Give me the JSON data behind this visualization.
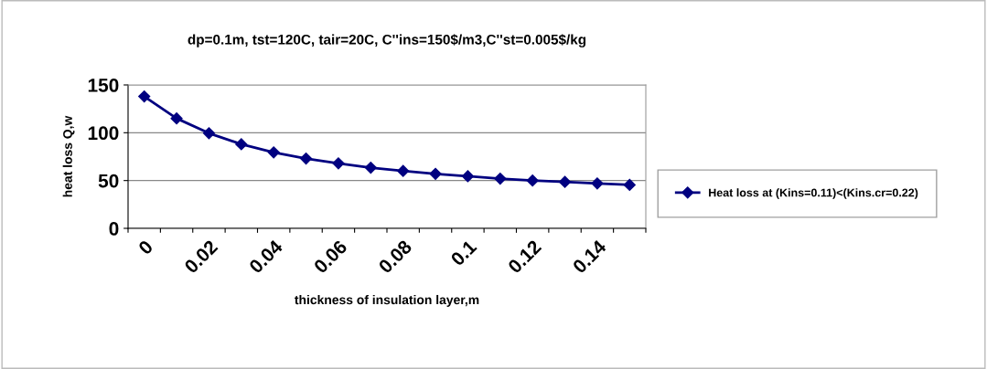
{
  "chart_data": {
    "type": "line",
    "title": "dp=0.1m, tst=120C, tair=20C, C''ins=150$/m3,C''st=0.005$/kg",
    "xlabel": "thickness of insulation layer,m",
    "ylabel": "heat loss Q,w",
    "categories": [
      "0",
      null,
      "0.02",
      null,
      "0.04",
      null,
      "0.06",
      null,
      "0.08",
      null,
      "0.1",
      null,
      "0.12",
      null,
      "0.14",
      null
    ],
    "series": [
      {
        "name": "Heat loss at (Kins=0.11)<(Kins.cr=0.22)",
        "color": "#000080",
        "values": [
          138,
          115,
          99.5,
          88,
          79.5,
          73,
          68,
          63.5,
          60,
          57,
          54.5,
          52,
          50,
          48.5,
          47,
          45.5
        ]
      }
    ],
    "ylim": [
      0,
      150
    ],
    "yticks": [
      0,
      50,
      100,
      150
    ],
    "grid": "y",
    "legend": "right",
    "marker": "diamond",
    "line_style": "solid"
  }
}
